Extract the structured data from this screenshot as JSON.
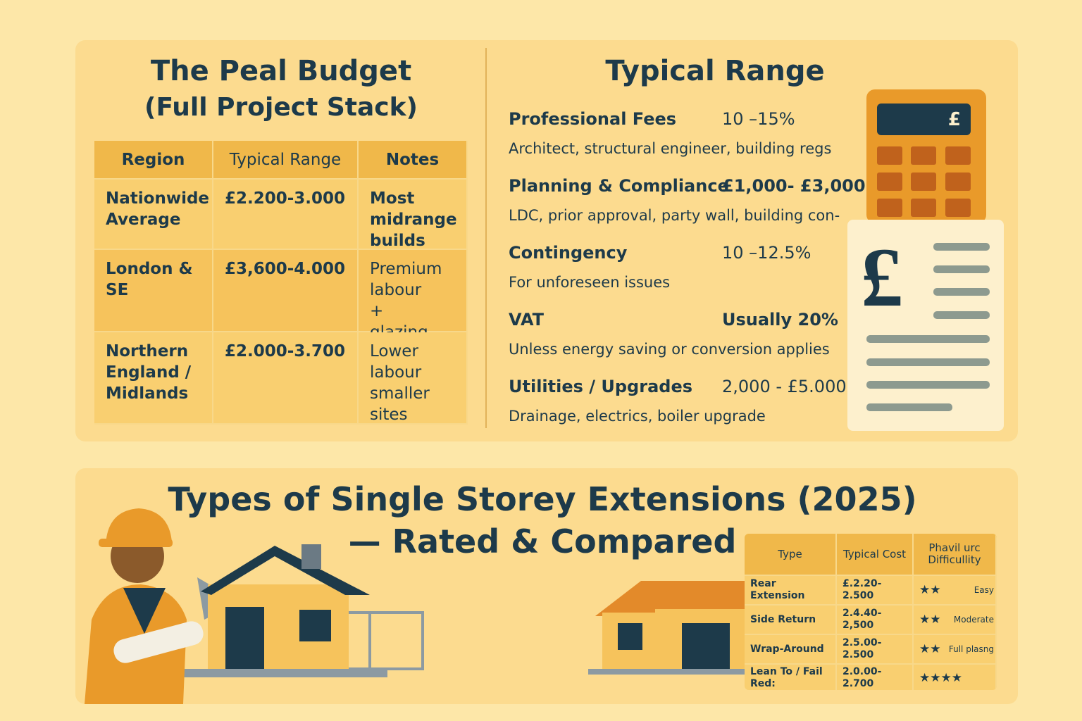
{
  "budget": {
    "title": "The Peal Budget",
    "subtitle": "(Full Project Stack)",
    "table": {
      "header": [
        "Region",
        "Typical Range",
        "Notes"
      ],
      "rows": [
        [
          "Nationwide Average",
          "£2.200-3.000",
          "Most midrange builds"
        ],
        [
          "London & SE",
          "£3,600-4.000",
          "Premium labour + glazing"
        ],
        [
          "Northern England / Midlands",
          "£2.000-3.700",
          "Lower labour smaller sites"
        ]
      ]
    }
  },
  "range": {
    "title": "Typical Range",
    "items": [
      {
        "label": "Professional Fees",
        "value": "10 –15%",
        "note": "Architect, structural engineer, building regs"
      },
      {
        "label": "Planning & Compliance",
        "value": "£1,000- £3,000",
        "note": "LDC, prior approval, party wall, building con-"
      },
      {
        "label": "Contingency",
        "value": "10 –12.5%",
        "note": "For unforeseen issues"
      },
      {
        "label": "VAT",
        "value": "Usually 20%",
        "note": "Unless energy saving or conversion applies"
      },
      {
        "label": "Utilities / Upgrades",
        "value": "2,000 - £5.000",
        "note": "Drainage, electrics, boiler upgrade"
      }
    ],
    "calculator_symbol": "£",
    "receipt_symbol": "£"
  },
  "extensions": {
    "title": "Types of Single Storey Extensions (2025)",
    "subtitle": "— Rated & Compared",
    "table": {
      "header": [
        "Type",
        "Typical Cost",
        "Phavil urc Difficullity"
      ],
      "rows": [
        [
          "Rear Extension",
          "£.2.20-2.500",
          "★★",
          "Easy"
        ],
        [
          "Side Return",
          "2.4.40-2,500",
          "★★",
          "Moderate"
        ],
        [
          "Wrap-Around",
          "2.5.00-2.500",
          "★★",
          "Full plasng"
        ],
        [
          "Lean To / Fail Red:",
          "2.0.00-2.700",
          "★★★★"
        ]
      ]
    }
  }
}
